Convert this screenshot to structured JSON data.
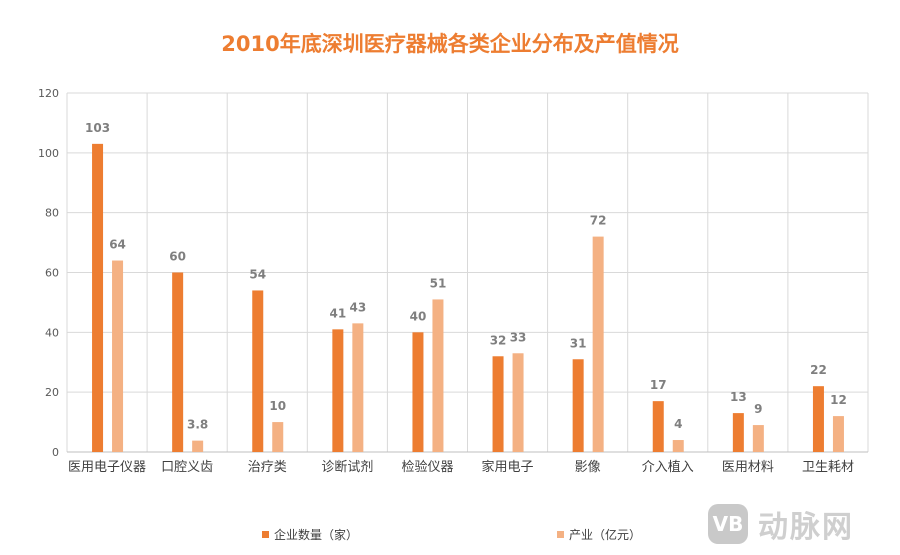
{
  "title": "2010年底深圳医疗器械各类企业分布及产值情况",
  "colors": {
    "series1": "#ED7D31",
    "series2": "#F4B183",
    "title": "#ED7D31"
  },
  "legend": {
    "series1_label": "企业数量（家）",
    "series2_label": "产业（亿元）"
  },
  "watermark": {
    "logo_text": "VB",
    "brand": "动脉网"
  },
  "chart_data": {
    "type": "bar",
    "title": "2010年底深圳医疗器械各类企业分布及产值情况",
    "categories": [
      "医用电子仪器",
      "口腔义齿",
      "治疗类",
      "诊断试剂",
      "检验仪器",
      "家用电子",
      "影像",
      "介入植入",
      "医用材料",
      "卫生耗材"
    ],
    "series": [
      {
        "name": "企业数量（家）",
        "values": [
          103,
          60,
          54,
          41,
          40,
          32,
          31,
          17,
          13,
          22
        ],
        "labels": [
          "103",
          "60",
          "54",
          "41",
          "40",
          "32",
          "31",
          "17",
          "13",
          "22"
        ]
      },
      {
        "name": "产业（亿元）",
        "values": [
          64,
          3.8,
          10,
          43,
          51,
          33,
          72,
          4,
          9,
          12
        ],
        "labels": [
          "64",
          "3.8",
          "10",
          "43",
          "51",
          "33",
          "72",
          "4",
          "9",
          "12"
        ]
      }
    ],
    "ylim": [
      0,
      120
    ],
    "yticks": [
      "0",
      "20",
      "40",
      "60",
      "80",
      "100",
      "120"
    ],
    "xlabel": "",
    "ylabel": "",
    "grid": true,
    "legend_position": "bottom"
  }
}
